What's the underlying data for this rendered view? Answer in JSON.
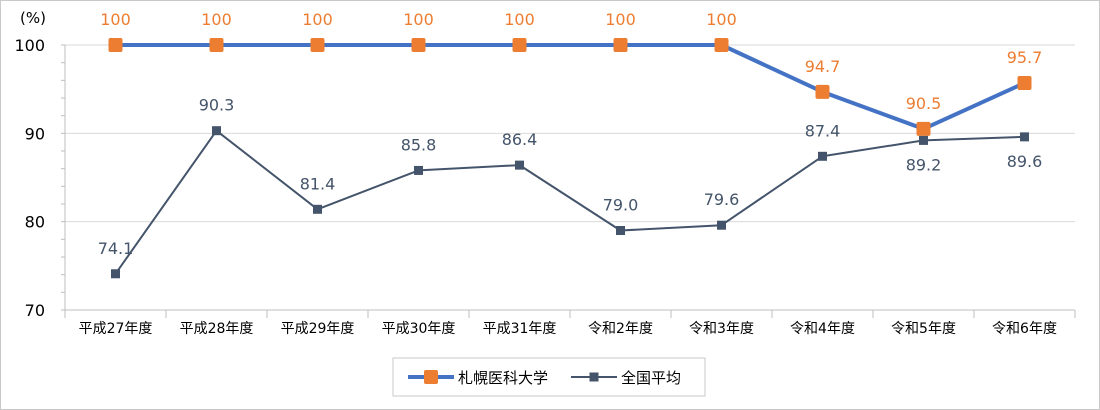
{
  "chart_data": {
    "type": "line",
    "unit_label": "(%)",
    "categories": [
      "平成27年度",
      "平成28年度",
      "平成29年度",
      "平成30年度",
      "平成31年度",
      "令和2年度",
      "令和3年度",
      "令和4年度",
      "令和5年度",
      "令和6年度"
    ],
    "ylim": [
      70,
      100
    ],
    "yticks": [
      70,
      80,
      90,
      100
    ],
    "grid": true,
    "legend_position": "bottom",
    "series": [
      {
        "name": "札幌医科大学",
        "values": [
          100,
          100,
          100,
          100,
          100,
          100,
          100,
          94.7,
          90.5,
          95.7
        ],
        "labels": [
          "100",
          "100",
          "100",
          "100",
          "100",
          "100",
          "100",
          "94.7",
          "90.5",
          "95.7"
        ],
        "line_color": "#4472c4",
        "marker_color": "#ed7d31",
        "label_color": "#ed7d31",
        "marker": "square"
      },
      {
        "name": "全国平均",
        "values": [
          74.1,
          90.3,
          81.4,
          85.8,
          86.4,
          79.0,
          79.6,
          87.4,
          89.2,
          89.6
        ],
        "labels": [
          "74.1",
          "90.3",
          "81.4",
          "85.8",
          "86.4",
          "79.0",
          "79.6",
          "87.4",
          "89.2",
          "89.6"
        ],
        "line_color": "#44546a",
        "marker_color": "#44546a",
        "label_color": "#44546a",
        "marker": "square"
      }
    ]
  }
}
